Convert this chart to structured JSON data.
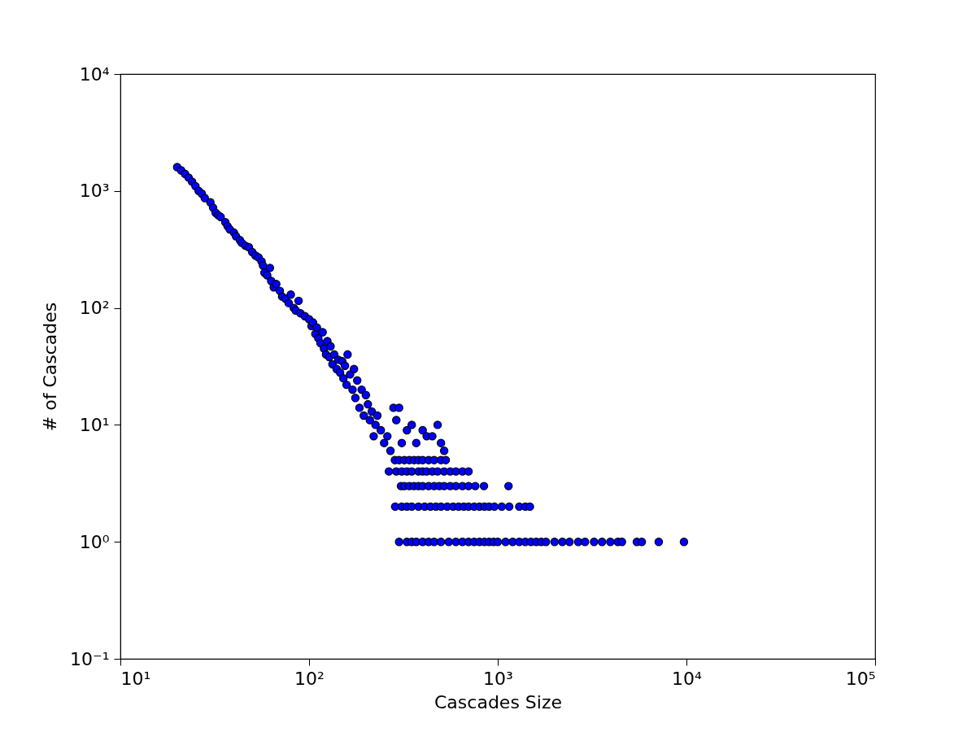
{
  "chart_data": {
    "type": "scatter",
    "xlabel": "Cascades Size",
    "ylabel": "# of Cascades",
    "log": "xy",
    "grid": false,
    "marker": "circle",
    "xlim": [
      10,
      100000
    ],
    "ylim": [
      0.1,
      10000
    ],
    "xticks": [
      {
        "value": 10,
        "label": "10¹"
      },
      {
        "value": 100,
        "label": "10²"
      },
      {
        "value": 1000,
        "label": "10³"
      },
      {
        "value": 10000,
        "label": "10⁴"
      },
      {
        "value": 100000,
        "label": "10⁵"
      }
    ],
    "yticks": [
      {
        "value": 0.1,
        "label": "10⁻¹"
      },
      {
        "value": 1,
        "label": "10⁰"
      },
      {
        "value": 10,
        "label": "10¹"
      },
      {
        "value": 100,
        "label": "10²"
      },
      {
        "value": 1000,
        "label": "10³"
      },
      {
        "value": 10000,
        "label": "10⁴"
      }
    ],
    "series": [
      {
        "color": "#0000ff",
        "x": [
          20,
          21,
          22,
          23,
          24,
          25,
          26,
          27,
          28,
          30,
          31,
          32,
          33,
          34,
          36,
          37,
          38,
          40,
          41,
          43,
          44,
          46,
          48,
          50,
          52,
          54,
          56,
          57,
          58,
          60,
          62,
          63,
          65,
          67,
          70,
          72,
          75,
          78,
          80,
          83,
          85,
          88,
          90,
          95,
          100,
          103,
          105,
          108,
          110,
          112,
          115,
          118,
          120,
          123,
          125,
          128,
          130,
          133,
          136,
          140,
          143,
          146,
          150,
          152,
          155,
          158,
          160,
          165,
          170,
          173,
          176,
          180,
          185,
          190,
          195,
          200,
          205,
          210,
          215,
          220,
          225,
          230,
          240,
          250,
          260,
          270,
          280,
          290,
          300,
          310,
          330,
          350,
          370,
          400,
          420,
          450,
          480,
          500,
          520,
          285,
          300,
          320,
          340,
          360,
          380,
          400,
          430,
          460,
          500,
          530,
          265,
          290,
          310,
          330,
          350,
          380,
          400,
          420,
          450,
          480,
          520,
          560,
          600,
          650,
          700,
          307,
          320,
          340,
          360,
          380,
          400,
          430,
          460,
          490,
          520,
          560,
          600,
          650,
          700,
          760,
          845,
          1140,
          286,
          310,
          330,
          350,
          380,
          410,
          440,
          470,
          500,
          540,
          580,
          620,
          660,
          700,
          750,
          800,
          850,
          900,
          960,
          1050,
          1150,
          1300,
          1400,
          1480,
          300,
          330,
          350,
          370,
          400,
          430,
          460,
          500,
          550,
          600,
          650,
          700,
          750,
          800,
          850,
          900,
          950,
          1000,
          1100,
          1200,
          1300,
          1400,
          1500,
          1600,
          1700,
          1800,
          2000,
          2200,
          2400,
          2670,
          2900,
          3240,
          3570,
          3950,
          4330,
          4550,
          5460,
          5800,
          7130,
          9700
        ],
        "values": [
          1600,
          1500,
          1400,
          1300,
          1200,
          1100,
          1000,
          950,
          870,
          800,
          720,
          650,
          620,
          600,
          540,
          500,
          470,
          440,
          410,
          380,
          360,
          340,
          330,
          300,
          280,
          270,
          250,
          230,
          200,
          190,
          220,
          170,
          150,
          160,
          140,
          125,
          120,
          110,
          130,
          100,
          95,
          115,
          90,
          85,
          80,
          70,
          75,
          60,
          68,
          55,
          50,
          62,
          45,
          40,
          52,
          38,
          47,
          33,
          40,
          30,
          36,
          28,
          35,
          25,
          32,
          22,
          40,
          27,
          20,
          30,
          17,
          24,
          14,
          20,
          12,
          18,
          15,
          11,
          13,
          8,
          10,
          12,
          9,
          7,
          8,
          6,
          14,
          11,
          14,
          7,
          9,
          10,
          7,
          9,
          8,
          8,
          10,
          7,
          6,
          5,
          5,
          5,
          5,
          5,
          5,
          5,
          5,
          5,
          5,
          5,
          4,
          4,
          4,
          4,
          4,
          4,
          4,
          4,
          4,
          4,
          4,
          4,
          4,
          4,
          4,
          3,
          3,
          3,
          3,
          3,
          3,
          3,
          3,
          3,
          3,
          3,
          3,
          3,
          3,
          3,
          3,
          3,
          2,
          2,
          2,
          2,
          2,
          2,
          2,
          2,
          2,
          2,
          2,
          2,
          2,
          2,
          2,
          2,
          2,
          2,
          2,
          2,
          2,
          2,
          2,
          2,
          1,
          1,
          1,
          1,
          1,
          1,
          1,
          1,
          1,
          1,
          1,
          1,
          1,
          1,
          1,
          1,
          1,
          1,
          1,
          1,
          1,
          1,
          1,
          1,
          1,
          1,
          1,
          1,
          1,
          1,
          1,
          1,
          1,
          1,
          1,
          1,
          1,
          1,
          1,
          1
        ]
      }
    ]
  }
}
